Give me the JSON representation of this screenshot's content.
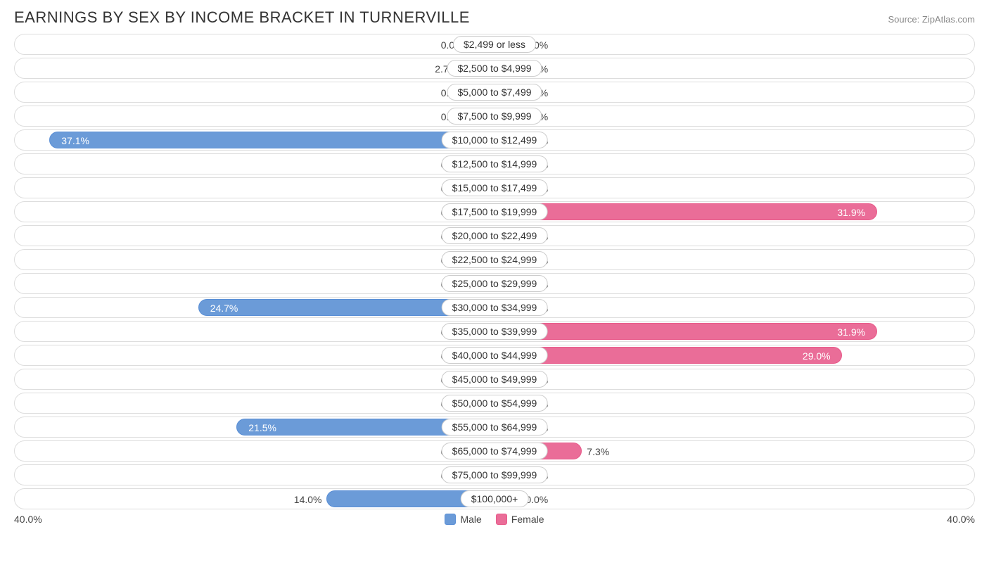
{
  "title": "EARNINGS BY SEX BY INCOME BRACKET IN TURNERVILLE",
  "source": "Source: ZipAtlas.com",
  "axis_max": 40.0,
  "axis_left_label": "40.0%",
  "axis_right_label": "40.0%",
  "colors": {
    "male_fill_light": "#a9c5ea",
    "male_fill_dark": "#6b9bd8",
    "male_border": "#5a8fd6",
    "female_fill_light": "#f5b5c8",
    "female_fill_dark": "#ea6d98",
    "female_border": "#e85a8a",
    "row_border": "#dddddd",
    "text": "#444444",
    "title_text": "#333333",
    "pill_border": "#cccccc",
    "background": "#ffffff"
  },
  "min_bar_pct": 5.5,
  "legend": {
    "male": "Male",
    "female": "Female"
  },
  "rows": [
    {
      "category": "$2,499 or less",
      "male": 0.0,
      "female": 0.0
    },
    {
      "category": "$2,500 to $4,999",
      "male": 2.7,
      "female": 0.0
    },
    {
      "category": "$5,000 to $7,499",
      "male": 0.0,
      "female": 0.0
    },
    {
      "category": "$7,500 to $9,999",
      "male": 0.0,
      "female": 0.0
    },
    {
      "category": "$10,000 to $12,499",
      "male": 37.1,
      "female": 0.0
    },
    {
      "category": "$12,500 to $14,999",
      "male": 0.0,
      "female": 0.0
    },
    {
      "category": "$15,000 to $17,499",
      "male": 0.0,
      "female": 0.0
    },
    {
      "category": "$17,500 to $19,999",
      "male": 0.0,
      "female": 31.9
    },
    {
      "category": "$20,000 to $22,499",
      "male": 0.0,
      "female": 0.0
    },
    {
      "category": "$22,500 to $24,999",
      "male": 0.0,
      "female": 0.0
    },
    {
      "category": "$25,000 to $29,999",
      "male": 0.0,
      "female": 0.0
    },
    {
      "category": "$30,000 to $34,999",
      "male": 24.7,
      "female": 0.0
    },
    {
      "category": "$35,000 to $39,999",
      "male": 0.0,
      "female": 31.9
    },
    {
      "category": "$40,000 to $44,999",
      "male": 0.0,
      "female": 29.0
    },
    {
      "category": "$45,000 to $49,999",
      "male": 0.0,
      "female": 0.0
    },
    {
      "category": "$50,000 to $54,999",
      "male": 0.0,
      "female": 0.0
    },
    {
      "category": "$55,000 to $64,999",
      "male": 21.5,
      "female": 0.0
    },
    {
      "category": "$65,000 to $74,999",
      "male": 0.0,
      "female": 7.3
    },
    {
      "category": "$75,000 to $99,999",
      "male": 0.0,
      "female": 0.0
    },
    {
      "category": "$100,000+",
      "male": 14.0,
      "female": 0.0
    }
  ]
}
